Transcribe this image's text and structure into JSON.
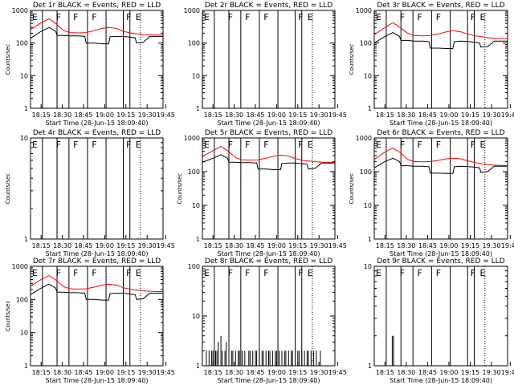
{
  "chart_data": [
    {
      "type": "line",
      "title": "Det 1r BLACK = Events, RED = LLD",
      "xlabel": "Start Time (28-Jun-15 18:09:40)",
      "ylabel": "Counts/sec",
      "yscale": "log",
      "ylim": [
        1,
        1000
      ],
      "xlim": [
        0,
        100
      ],
      "y_ticks": [
        "1",
        "10",
        "100",
        "1000"
      ],
      "x_ticks": [
        "18:15",
        "18:30",
        "18:45",
        "19:00",
        "19:15",
        "19:30",
        "19:45"
      ],
      "flags": [
        "E",
        "F",
        "F",
        "F",
        "F",
        "E"
      ],
      "series": [
        {
          "color": "#ff0000",
          "x": [
            0,
            8,
            14,
            19,
            25,
            30,
            36,
            42,
            48,
            54,
            59,
            65,
            70,
            76,
            81,
            86,
            91,
            97,
            100
          ],
          "values": [
            260,
            420,
            550,
            400,
            240,
            210,
            205,
            210,
            240,
            280,
            300,
            280,
            230,
            200,
            190,
            180,
            178,
            175,
            175
          ]
        },
        {
          "color": "#000000",
          "x": [
            0,
            8,
            14,
            19,
            20,
            25,
            30,
            36,
            41,
            42,
            48,
            54,
            59,
            60,
            65,
            70,
            76,
            79,
            80,
            85,
            90,
            95,
            100
          ],
          "values": [
            140,
            230,
            300,
            230,
            170,
            170,
            165,
            165,
            160,
            100,
            100,
            95,
            95,
            155,
            160,
            160,
            150,
            145,
            100,
            105,
            160,
            160,
            160
          ]
        }
      ]
    },
    {
      "type": "line",
      "title": "Det 2r BLACK = Events, RED = LLD",
      "xlabel": "Start Time (28-Jun-15 18:09:40)",
      "ylabel": "",
      "yscale": "log",
      "ylim": [
        1,
        1000
      ],
      "xlim": [
        0,
        100
      ],
      "y_ticks": [
        "1",
        "10",
        "100",
        "1000"
      ],
      "x_ticks": [
        "18:15",
        "18:30",
        "18:45",
        "19:00",
        "19:15",
        "19:30",
        "19:45"
      ],
      "flags": [
        "E",
        "F",
        "F",
        "F",
        "F",
        "E"
      ],
      "series": []
    },
    {
      "type": "line",
      "title": "Det 3r BLACK = Events, RED = LLD",
      "xlabel": "Start Time (28-Jun-15 18:09:40)",
      "ylabel": "Counts/sec",
      "yscale": "log",
      "ylim": [
        1,
        1000
      ],
      "xlim": [
        0,
        100
      ],
      "y_ticks": [
        "1",
        "10",
        "100",
        "1000"
      ],
      "x_ticks": [
        "18:15",
        "18:30",
        "18:45",
        "19:00",
        "19:15",
        "19:30",
        "19:45"
      ],
      "flags": [
        "E",
        "F",
        "F",
        "F",
        "F",
        "E"
      ],
      "series": [
        {
          "color": "#ff0000",
          "x": [
            0,
            8,
            14,
            19,
            25,
            30,
            36,
            42,
            48,
            54,
            59,
            65,
            70,
            76,
            81,
            86,
            91,
            97,
            100
          ],
          "values": [
            180,
            300,
            420,
            310,
            200,
            170,
            165,
            170,
            190,
            220,
            240,
            220,
            190,
            165,
            155,
            145,
            140,
            138,
            138
          ]
        },
        {
          "color": "#000000",
          "x": [
            0,
            8,
            14,
            19,
            20,
            25,
            30,
            36,
            41,
            42,
            48,
            54,
            59,
            60,
            65,
            70,
            76,
            79,
            80,
            85,
            90,
            95,
            100
          ],
          "values": [
            100,
            160,
            210,
            160,
            120,
            120,
            115,
            115,
            110,
            70,
            70,
            68,
            68,
            110,
            115,
            112,
            105,
            100,
            75,
            78,
            115,
            115,
            115
          ]
        }
      ]
    },
    {
      "type": "line",
      "title": "Det 4r BLACK = Events, RED = LLD",
      "xlabel": "Start Time (28-Jun-15 18:09:40)",
      "ylabel": "Counts/sec",
      "yscale": "log",
      "ylim": [
        1,
        10
      ],
      "xlim": [
        0,
        100
      ],
      "y_ticks": [
        "1",
        "10"
      ],
      "x_ticks": [
        "18:15",
        "18:30",
        "18:45",
        "19:00",
        "19:15",
        "19:30",
        "19:45"
      ],
      "flags": [
        "E",
        "F",
        "F",
        "F",
        "F",
        "E"
      ],
      "series": []
    },
    {
      "type": "line",
      "title": "Det 5r BLACK = Events, RED = LLD",
      "xlabel": "Start Time (28-Jun-15 18:09:40)",
      "ylabel": "Counts/sec",
      "yscale": "log",
      "ylim": [
        1,
        1000
      ],
      "xlim": [
        0,
        100
      ],
      "y_ticks": [
        "1",
        "10",
        "100",
        "1000"
      ],
      "x_ticks": [
        "18:15",
        "18:30",
        "18:45",
        "19:00",
        "19:15",
        "19:30",
        "19:45"
      ],
      "flags": [
        "E",
        "F",
        "F",
        "F",
        "F",
        "E"
      ],
      "series": [
        {
          "color": "#ff0000",
          "x": [
            0,
            8,
            14,
            19,
            25,
            30,
            36,
            42,
            48,
            54,
            59,
            65,
            70,
            76,
            81,
            86,
            91,
            97,
            100
          ],
          "values": [
            280,
            420,
            560,
            420,
            260,
            225,
            220,
            225,
            250,
            290,
            310,
            290,
            245,
            215,
            205,
            195,
            190,
            188,
            188
          ]
        },
        {
          "color": "#000000",
          "x": [
            0,
            8,
            14,
            19,
            20,
            25,
            30,
            36,
            41,
            42,
            48,
            54,
            59,
            60,
            65,
            70,
            76,
            79,
            80,
            85,
            90,
            95,
            100
          ],
          "values": [
            190,
            250,
            320,
            250,
            190,
            190,
            185,
            185,
            180,
            120,
            120,
            115,
            115,
            175,
            180,
            180,
            170,
            165,
            120,
            125,
            180,
            180,
            180
          ]
        }
      ]
    },
    {
      "type": "line",
      "title": "Det 6r BLACK = Events, RED = LLD",
      "xlabel": "Start Time (28-Jun-15 18:09:40)",
      "ylabel": "Counts/sec",
      "yscale": "log",
      "ylim": [
        1,
        1000
      ],
      "xlim": [
        0,
        100
      ],
      "y_ticks": [
        "1",
        "10",
        "100",
        "1000"
      ],
      "x_ticks": [
        "18:15",
        "18:30",
        "18:45",
        "19:00",
        "19:15",
        "19:30",
        "19:45"
      ],
      "flags": [
        "E",
        "F",
        "F",
        "F",
        "F",
        "E"
      ],
      "series": [
        {
          "color": "#ff0000",
          "x": [
            0,
            8,
            14,
            19,
            25,
            30,
            36,
            42,
            48,
            54,
            59,
            65,
            70,
            76,
            81,
            86,
            91,
            97,
            100
          ],
          "values": [
            230,
            380,
            500,
            380,
            230,
            200,
            195,
            200,
            215,
            240,
            250,
            240,
            210,
            185,
            170,
            160,
            155,
            152,
            152
          ]
        },
        {
          "color": "#000000",
          "x": [
            0,
            8,
            14,
            19,
            20,
            25,
            30,
            36,
            41,
            42,
            48,
            54,
            59,
            60,
            65,
            70,
            76,
            79,
            80,
            85,
            90,
            95,
            100
          ],
          "values": [
            130,
            200,
            250,
            200,
            150,
            150,
            145,
            145,
            140,
            90,
            90,
            88,
            88,
            140,
            145,
            142,
            135,
            130,
            95,
            100,
            145,
            145,
            145
          ]
        }
      ]
    },
    {
      "type": "line",
      "title": "Det 7r BLACK = Events, RED = LLD",
      "xlabel": "Start Time (28-Jun-15 18:09:40)",
      "ylabel": "Counts/sec",
      "yscale": "log",
      "ylim": [
        1,
        1000
      ],
      "xlim": [
        0,
        100
      ],
      "y_ticks": [
        "1",
        "10",
        "100",
        "1000"
      ],
      "x_ticks": [
        "18:15",
        "18:30",
        "18:45",
        "19:00",
        "19:15",
        "19:30",
        "19:45"
      ],
      "flags": [
        "E",
        "F",
        "F",
        "F",
        "F",
        "E"
      ],
      "series": [
        {
          "color": "#ff0000",
          "x": [
            0,
            8,
            14,
            19,
            25,
            30,
            36,
            42,
            48,
            54,
            59,
            65,
            70,
            76,
            81,
            86,
            91,
            97,
            100
          ],
          "values": [
            250,
            400,
            520,
            390,
            240,
            210,
            205,
            210,
            235,
            270,
            290,
            270,
            225,
            200,
            190,
            180,
            176,
            173,
            173
          ]
        },
        {
          "color": "#000000",
          "x": [
            0,
            8,
            14,
            19,
            20,
            25,
            30,
            36,
            41,
            42,
            48,
            54,
            59,
            60,
            65,
            70,
            76,
            79,
            80,
            85,
            90,
            95,
            100
          ],
          "values": [
            140,
            220,
            290,
            220,
            165,
            165,
            160,
            160,
            155,
            100,
            100,
            96,
            96,
            150,
            155,
            155,
            145,
            140,
            100,
            105,
            155,
            155,
            155
          ]
        }
      ]
    },
    {
      "type": "line",
      "title": "Det 8r BLACK = Events, RED = LLD",
      "xlabel": "Start Time (28-Jun-15 18:09:40)",
      "ylabel": "",
      "yscale": "log",
      "ylim": [
        1,
        100
      ],
      "xlim": [
        0,
        100
      ],
      "y_ticks": [
        "1",
        "10",
        "100"
      ],
      "x_ticks": [
        "18:15",
        "18:30",
        "18:45",
        "19:00",
        "19:15",
        "19:30",
        "19:45"
      ],
      "flags": [
        "E",
        "F",
        "F",
        "F",
        "F",
        "E"
      ],
      "series": [
        {
          "color": "#000000",
          "x": [
            2,
            3,
            4,
            5,
            6,
            7,
            8,
            9,
            10,
            11,
            12,
            13,
            14,
            15,
            16,
            17,
            18,
            19,
            20,
            21,
            22,
            23,
            24,
            25,
            26,
            27,
            28,
            29,
            30,
            31,
            32,
            33,
            34,
            35,
            36,
            37,
            38,
            39,
            40,
            41,
            42,
            43,
            44,
            45,
            46,
            47,
            48,
            49,
            50,
            51,
            52,
            53,
            54,
            55,
            56,
            57,
            58,
            59,
            60,
            61,
            62,
            63,
            64,
            65,
            66,
            67,
            68,
            69,
            70,
            71,
            72,
            73,
            74,
            75,
            76,
            77,
            78,
            79,
            80,
            81,
            82,
            83,
            84,
            85,
            86,
            87,
            88,
            89
          ],
          "values": [
            1,
            2,
            1,
            2,
            1,
            2,
            2,
            1,
            2,
            2,
            3,
            1,
            4,
            2,
            1,
            2,
            3,
            1,
            2,
            1,
            2,
            2,
            1,
            2,
            1,
            2,
            2,
            1,
            2,
            1,
            2,
            1,
            1,
            2,
            2,
            1,
            2,
            1,
            2,
            2,
            1,
            2,
            1,
            2,
            2,
            1,
            2,
            1,
            2,
            2,
            1,
            2,
            1,
            2,
            2,
            1,
            2,
            1,
            2,
            1,
            2,
            2,
            1,
            2,
            1,
            2,
            2,
            1,
            2,
            1,
            2,
            2,
            1,
            2,
            1,
            2,
            1,
            2,
            2,
            1,
            2,
            1,
            2,
            1,
            2,
            1,
            1,
            2
          ]
        }
      ]
    },
    {
      "type": "line",
      "title": "Det 9r BLACK = Events, RED = LLD",
      "xlabel": "Start Time (28-Jun-15 18:09:40)",
      "ylabel": "",
      "yscale": "log",
      "ylim": [
        1,
        10
      ],
      "xlim": [
        0,
        100
      ],
      "y_ticks": [
        "1",
        "10"
      ],
      "x_ticks": [
        "18:15",
        "18:30",
        "18:45",
        "19:00",
        "19:15",
        "19:30",
        "19:45"
      ],
      "flags": [
        "E",
        "F",
        "F",
        "F",
        "F",
        "E"
      ],
      "series": [
        {
          "color": "#000000",
          "x": [
            13,
            13.5,
            14,
            14.5,
            15
          ],
          "values": [
            1,
            2,
            1,
            2,
            1
          ]
        }
      ]
    }
  ]
}
